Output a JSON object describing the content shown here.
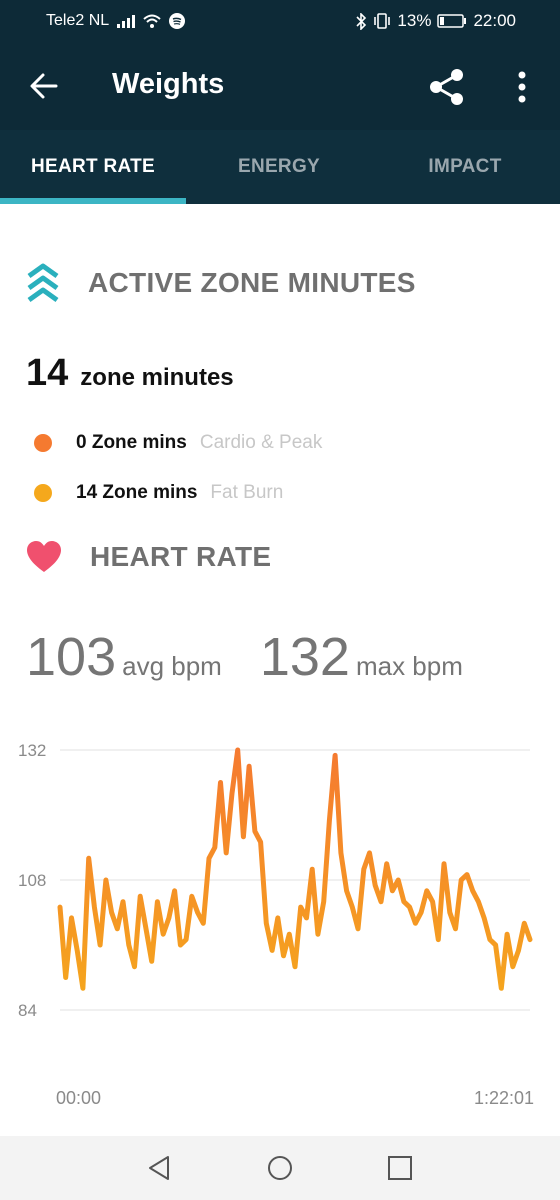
{
  "status_bar": {
    "carrier": "Tele2 NL",
    "battery": "13%",
    "time": "22:00"
  },
  "app_bar": {
    "title": "Weights",
    "back_icon": "arrow-left-icon",
    "share_icon": "share-icon",
    "more_icon": "more-vertical-icon"
  },
  "tabs": [
    {
      "label": "HEART RATE",
      "active": true
    },
    {
      "label": "ENERGY",
      "active": false
    },
    {
      "label": "IMPACT",
      "active": false
    }
  ],
  "active_zone": {
    "heading": "ACTIVE ZONE MINUTES",
    "icon": "chevrons-up-icon",
    "accent": "#2ab0bd",
    "total_value": "14",
    "total_unit": "zone minutes",
    "zones": [
      {
        "value": "0 Zone mins",
        "label": "Cardio & Peak",
        "color": "#f57a30"
      },
      {
        "value": "14 Zone mins",
        "label": "Fat Burn",
        "color": "#f5a81c"
      }
    ]
  },
  "heart_rate": {
    "heading": "HEART RATE",
    "icon": "heart-icon",
    "icon_color": "#f0506e",
    "avg_value": "103",
    "avg_unit": "avg bpm",
    "max_value": "132",
    "max_unit": "max bpm"
  },
  "chart_data": {
    "type": "line",
    "x_unit": "minutes",
    "x_range": [
      0,
      82
    ],
    "x_tick_labels": [
      "00:00",
      "1:22:01"
    ],
    "y_ticks": [
      132,
      108,
      84
    ],
    "ylim": [
      84,
      132
    ],
    "grid": true,
    "series": [
      {
        "color_low": "#f5a81c",
        "color_high": "#f57a30",
        "x": [
          0,
          1,
          2,
          3,
          4,
          5,
          6,
          7,
          8,
          9,
          10,
          11,
          12,
          13,
          14,
          15,
          16,
          17,
          18,
          19,
          20,
          21,
          22,
          23,
          24,
          25,
          26,
          27,
          28,
          29,
          30,
          31,
          32,
          33,
          34,
          35,
          36,
          37,
          38,
          39,
          40,
          41,
          42,
          43,
          44,
          45,
          46,
          47,
          48,
          49,
          50,
          51,
          52,
          53,
          54,
          55,
          56,
          57,
          58,
          59,
          60,
          61,
          62,
          63,
          64,
          65,
          66,
          67,
          68,
          69,
          70,
          71,
          72,
          73,
          74,
          75,
          76,
          77,
          78,
          79,
          80,
          81,
          82
        ],
        "values": [
          103,
          90,
          101,
          95,
          88,
          112,
          103,
          96,
          108,
          102,
          99,
          104,
          96,
          92,
          105,
          99,
          93,
          104,
          98,
          101,
          106,
          96,
          97,
          105,
          102,
          100,
          112,
          114,
          126,
          113,
          124,
          132,
          116,
          129,
          117,
          115,
          100,
          95,
          101,
          94,
          98,
          92,
          103,
          101,
          110,
          98,
          104,
          119,
          131,
          113,
          106,
          103,
          99,
          110,
          113,
          107,
          104,
          111,
          106,
          108,
          104,
          103,
          100,
          102,
          106,
          104,
          97,
          111,
          102,
          99,
          108,
          109,
          106,
          104,
          101,
          97,
          96,
          88,
          98,
          92,
          95,
          100,
          97
        ]
      }
    ]
  },
  "nav_bar": {
    "back_icon": "nav-back-icon",
    "home_icon": "nav-home-icon",
    "recents_icon": "nav-recents-icon"
  }
}
